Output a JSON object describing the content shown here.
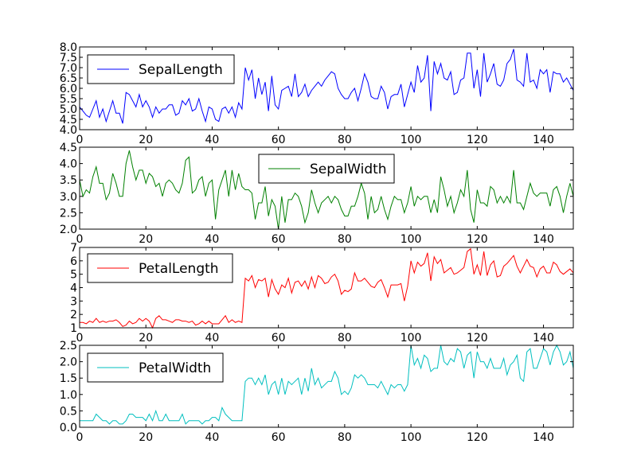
{
  "chart_data": [
    {
      "type": "line",
      "series": [
        {
          "name": "SepalLength",
          "color": "#0000ff",
          "values": [
            5.1,
            4.9,
            4.7,
            4.6,
            5.0,
            5.4,
            4.6,
            5.0,
            4.4,
            4.9,
            5.4,
            4.8,
            4.8,
            4.3,
            5.8,
            5.7,
            5.4,
            5.1,
            5.7,
            5.1,
            5.4,
            5.1,
            4.6,
            5.1,
            4.8,
            5.0,
            5.0,
            5.2,
            5.2,
            4.7,
            4.8,
            5.4,
            5.2,
            5.5,
            4.9,
            5.0,
            5.5,
            4.9,
            4.4,
            5.1,
            5.0,
            4.5,
            4.4,
            5.0,
            5.1,
            4.8,
            5.1,
            4.6,
            5.3,
            5.0,
            7.0,
            6.4,
            6.9,
            5.5,
            6.5,
            5.7,
            6.3,
            4.9,
            6.6,
            5.2,
            5.0,
            5.9,
            6.0,
            6.1,
            5.6,
            6.7,
            5.6,
            5.8,
            6.2,
            5.6,
            5.9,
            6.1,
            6.3,
            6.1,
            6.4,
            6.6,
            6.8,
            6.7,
            6.0,
            5.7,
            5.5,
            5.5,
            5.8,
            6.0,
            5.4,
            6.0,
            6.7,
            6.3,
            5.6,
            5.5,
            5.5,
            6.1,
            5.8,
            5.0,
            5.6,
            5.7,
            5.7,
            6.2,
            5.1,
            5.7,
            6.3,
            5.8,
            7.1,
            6.3,
            6.5,
            7.6,
            4.9,
            7.3,
            6.7,
            7.2,
            6.5,
            6.4,
            6.8,
            5.7,
            5.8,
            6.4,
            6.5,
            7.7,
            7.7,
            6.0,
            6.9,
            5.6,
            7.7,
            6.3,
            6.7,
            7.2,
            6.2,
            6.1,
            6.4,
            7.2,
            7.4,
            7.9,
            6.4,
            6.3,
            6.1,
            7.7,
            6.3,
            6.4,
            6.0,
            6.9,
            6.7,
            6.9,
            5.8,
            6.8,
            6.7,
            6.7,
            6.3,
            6.5,
            6.2,
            5.9
          ]
        }
      ],
      "xlim": [
        0,
        149
      ],
      "ylim": [
        4.0,
        8.0
      ],
      "xticks": [
        "0",
        "20",
        "40",
        "60",
        "80",
        "100",
        "120",
        "140"
      ],
      "yticks": [
        "4.0",
        "4.5",
        "5.0",
        "5.5",
        "6.0",
        "6.5",
        "7.0",
        "7.5",
        "8.0"
      ],
      "legend_position": "upper-left",
      "grid": false
    },
    {
      "type": "line",
      "series": [
        {
          "name": "SepalWidth",
          "color": "#008000",
          "values": [
            3.5,
            3.0,
            3.2,
            3.1,
            3.6,
            3.9,
            3.4,
            3.4,
            2.9,
            3.1,
            3.7,
            3.4,
            3.0,
            3.0,
            4.0,
            4.4,
            3.9,
            3.5,
            3.8,
            3.8,
            3.4,
            3.7,
            3.6,
            3.3,
            3.4,
            3.0,
            3.4,
            3.5,
            3.4,
            3.2,
            3.1,
            3.4,
            4.1,
            4.2,
            3.1,
            3.2,
            3.5,
            3.6,
            3.0,
            3.4,
            3.5,
            2.3,
            3.2,
            3.5,
            3.8,
            3.0,
            3.8,
            3.2,
            3.7,
            3.3,
            3.2,
            3.2,
            3.1,
            2.3,
            2.8,
            2.8,
            3.3,
            2.4,
            2.9,
            2.7,
            2.0,
            3.0,
            2.2,
            2.9,
            2.9,
            3.1,
            3.0,
            2.7,
            2.2,
            2.5,
            3.2,
            2.8,
            2.5,
            2.8,
            2.9,
            3.0,
            2.8,
            3.0,
            2.9,
            2.6,
            2.4,
            2.4,
            2.7,
            2.7,
            3.0,
            3.4,
            3.1,
            2.3,
            3.0,
            2.5,
            2.6,
            3.0,
            2.6,
            2.3,
            2.7,
            3.0,
            2.9,
            2.9,
            2.5,
            2.8,
            3.3,
            2.7,
            3.0,
            2.9,
            3.0,
            3.0,
            2.5,
            2.9,
            2.5,
            3.6,
            3.2,
            2.7,
            3.0,
            2.5,
            2.8,
            3.2,
            3.0,
            3.8,
            2.6,
            2.2,
            3.2,
            2.8,
            2.8,
            2.7,
            3.3,
            3.2,
            2.8,
            3.0,
            2.8,
            3.0,
            2.8,
            3.8,
            2.8,
            2.8,
            2.6,
            3.0,
            3.4,
            3.1,
            3.0,
            3.1,
            3.1,
            3.1,
            2.7,
            3.2,
            3.3,
            3.0,
            2.5,
            3.0,
            3.4,
            3.0
          ]
        }
      ],
      "xlim": [
        0,
        149
      ],
      "ylim": [
        2.0,
        4.5
      ],
      "xticks": [
        "0",
        "20",
        "40",
        "60",
        "80",
        "100",
        "120",
        "140"
      ],
      "yticks": [
        "2.0",
        "2.5",
        "3.0",
        "3.5",
        "4.0",
        "4.5"
      ],
      "legend_position": "upper-center",
      "grid": false
    },
    {
      "type": "line",
      "series": [
        {
          "name": "PetalLength",
          "color": "#ff0000",
          "values": [
            1.4,
            1.4,
            1.3,
            1.5,
            1.4,
            1.7,
            1.4,
            1.5,
            1.4,
            1.5,
            1.5,
            1.6,
            1.4,
            1.1,
            1.2,
            1.5,
            1.3,
            1.4,
            1.7,
            1.5,
            1.7,
            1.5,
            1.0,
            1.7,
            1.9,
            1.6,
            1.6,
            1.5,
            1.4,
            1.6,
            1.6,
            1.5,
            1.5,
            1.4,
            1.5,
            1.2,
            1.3,
            1.5,
            1.3,
            1.5,
            1.3,
            1.3,
            1.3,
            1.6,
            1.9,
            1.4,
            1.6,
            1.4,
            1.5,
            1.4,
            4.7,
            4.5,
            4.9,
            4.0,
            4.6,
            4.5,
            4.7,
            3.3,
            4.6,
            3.9,
            3.5,
            4.2,
            4.0,
            4.7,
            3.6,
            4.4,
            4.5,
            4.1,
            4.5,
            3.9,
            4.8,
            4.0,
            4.9,
            4.7,
            4.3,
            4.4,
            4.8,
            5.0,
            4.5,
            3.5,
            3.8,
            3.7,
            3.9,
            5.1,
            4.5,
            4.5,
            4.7,
            4.4,
            4.1,
            4.0,
            4.4,
            4.6,
            4.0,
            3.3,
            4.2,
            4.2,
            4.2,
            4.3,
            3.0,
            4.1,
            6.0,
            5.1,
            5.9,
            5.6,
            5.8,
            6.6,
            4.5,
            6.3,
            5.8,
            6.1,
            5.1,
            5.3,
            5.5,
            5.0,
            5.1,
            5.3,
            5.5,
            6.7,
            6.9,
            5.0,
            5.7,
            4.9,
            6.7,
            4.9,
            5.7,
            6.0,
            4.8,
            4.9,
            5.6,
            5.8,
            6.1,
            6.4,
            5.6,
            5.1,
            5.6,
            6.1,
            5.6,
            5.5,
            4.8,
            5.4,
            5.6,
            5.1,
            5.1,
            5.9,
            5.7,
            5.2,
            5.0,
            5.2,
            5.4,
            5.1
          ]
        }
      ],
      "xlim": [
        0,
        149
      ],
      "ylim": [
        1,
        7
      ],
      "xticks": [
        "0",
        "20",
        "40",
        "60",
        "80",
        "100",
        "120",
        "140"
      ],
      "yticks": [
        "1",
        "2",
        "3",
        "4",
        "5",
        "6",
        "7"
      ],
      "legend_position": "upper-left",
      "grid": false
    },
    {
      "type": "line",
      "series": [
        {
          "name": "PetalWidth",
          "color": "#00bfbf",
          "values": [
            0.2,
            0.2,
            0.2,
            0.2,
            0.2,
            0.4,
            0.3,
            0.2,
            0.2,
            0.1,
            0.2,
            0.2,
            0.1,
            0.1,
            0.2,
            0.4,
            0.4,
            0.3,
            0.3,
            0.3,
            0.2,
            0.4,
            0.2,
            0.5,
            0.2,
            0.2,
            0.4,
            0.2,
            0.2,
            0.2,
            0.2,
            0.4,
            0.1,
            0.2,
            0.2,
            0.2,
            0.2,
            0.1,
            0.2,
            0.2,
            0.3,
            0.3,
            0.2,
            0.6,
            0.4,
            0.3,
            0.2,
            0.2,
            0.2,
            0.2,
            1.4,
            1.5,
            1.5,
            1.3,
            1.5,
            1.3,
            1.6,
            1.0,
            1.3,
            1.4,
            1.0,
            1.5,
            1.0,
            1.4,
            1.3,
            1.4,
            1.5,
            1.0,
            1.5,
            1.1,
            1.8,
            1.3,
            1.5,
            1.2,
            1.3,
            1.4,
            1.4,
            1.7,
            1.5,
            1.0,
            1.1,
            1.0,
            1.2,
            1.6,
            1.5,
            1.6,
            1.5,
            1.3,
            1.3,
            1.3,
            1.2,
            1.4,
            1.2,
            1.0,
            1.3,
            1.2,
            1.3,
            1.3,
            1.1,
            1.3,
            2.5,
            1.9,
            2.1,
            1.8,
            2.2,
            2.1,
            1.7,
            1.8,
            1.8,
            2.5,
            2.0,
            1.9,
            2.1,
            2.0,
            2.4,
            2.3,
            1.8,
            2.2,
            2.3,
            1.5,
            2.3,
            2.0,
            2.0,
            1.8,
            2.1,
            1.8,
            1.8,
            1.8,
            2.1,
            1.6,
            1.9,
            2.0,
            2.2,
            1.5,
            1.4,
            2.3,
            2.4,
            1.8,
            1.8,
            2.1,
            2.4,
            2.3,
            1.9,
            2.3,
            2.5,
            2.3,
            1.9,
            2.0,
            2.3,
            1.8
          ]
        }
      ],
      "xlim": [
        0,
        149
      ],
      "ylim": [
        0.0,
        2.5
      ],
      "xticks": [
        "0",
        "20",
        "40",
        "60",
        "80",
        "100",
        "120",
        "140"
      ],
      "yticks": [
        "0.0",
        "0.5",
        "1.0",
        "1.5",
        "2.0",
        "2.5"
      ],
      "legend_position": "upper-left",
      "grid": false
    }
  ]
}
